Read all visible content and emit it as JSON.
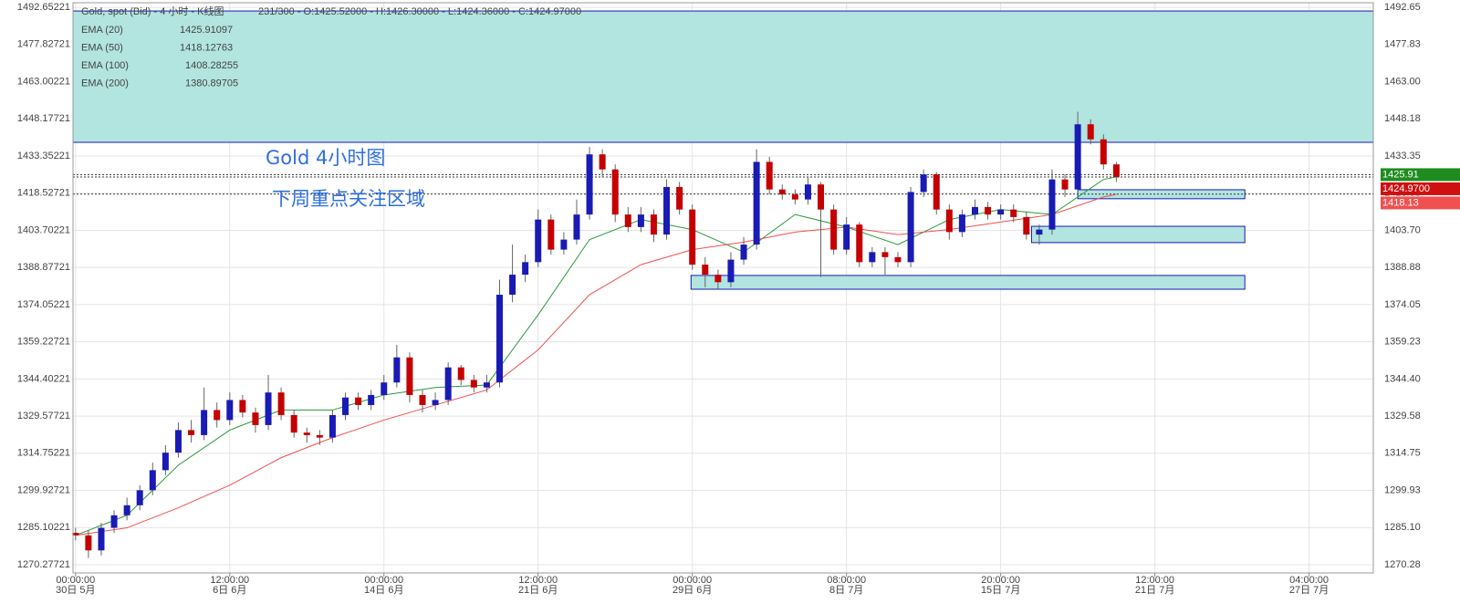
{
  "chart_data": {
    "type": "candlestick",
    "header": "Gold, spot (Bid) - 4 小时 - K线图",
    "ohlc_text": "231/300 - O:1425.52000 - H:1426.30000 - L:1424.36000 - C:1424.97000",
    "annotations": [
      "Gold 4小时图",
      "下周重点关注区域"
    ],
    "ylim": [
      1267.0,
      1494.5
    ],
    "xlim": [
      -0.2,
      101
    ],
    "yticks": [
      1492.65221,
      1477.82721,
      1463.00221,
      1448.17721,
      1433.35221,
      1418.52721,
      1403.70221,
      1388.87721,
      1374.05221,
      1359.22721,
      1344.40221,
      1329.57721,
      1314.75221,
      1299.92721,
      1285.10221,
      1270.27721
    ],
    "y2lim": [
      1267.0,
      1494.5
    ],
    "y2ticks": [
      {
        "value": 1492.65221,
        "label": "1492.65"
      },
      {
        "value": 1477.82721,
        "label": "1477.83"
      },
      {
        "value": 1463.00221,
        "label": "1463.00"
      },
      {
        "value": 1448.17721,
        "label": "1448.18"
      },
      {
        "value": 1433.35221,
        "label": "1433.35"
      },
      {
        "value": 1418.52721,
        "label": "1418.53"
      },
      {
        "value": 1403.70221,
        "label": "1403.70"
      },
      {
        "value": 1388.87721,
        "label": "1388.88"
      },
      {
        "value": 1374.05221,
        "label": "1374.05"
      },
      {
        "value": 1359.22721,
        "label": "1359.23"
      },
      {
        "value": 1344.40221,
        "label": "1344.40"
      },
      {
        "value": 1329.57721,
        "label": "1329.58"
      },
      {
        "value": 1314.75221,
        "label": "1314.75"
      },
      {
        "value": 1299.92721,
        "label": "1299.93"
      },
      {
        "value": 1285.10221,
        "label": "1285.10"
      },
      {
        "value": 1270.27721,
        "label": "1270.28"
      }
    ],
    "xticks": [
      {
        "value": 0,
        "label": "00:00:00",
        "date": "30日 5月"
      },
      {
        "value": 12,
        "label": "12:00:00",
        "date": "6日 6月"
      },
      {
        "value": 24,
        "label": "00:00:00",
        "date": "14日 6月"
      },
      {
        "value": 36,
        "label": "12:00:00",
        "date": "21日 6月"
      },
      {
        "value": 48,
        "label": "00:00:00",
        "date": "29日 6月"
      },
      {
        "value": 60,
        "label": "08:00:00",
        "date": "8日 7月"
      },
      {
        "value": 72,
        "label": "20:00:00",
        "date": "15日 7月"
      },
      {
        "value": 84,
        "label": "12:00:00",
        "date": "21日 7月"
      },
      {
        "value": 96,
        "label": "04:00:00",
        "date": "27日 7月"
      }
    ],
    "grid": true,
    "up_color": "#1a1ab4",
    "down_color": "#c40000",
    "open": [
      1283,
      1282,
      1276,
      1285,
      1290,
      1294,
      1300,
      1308,
      1315,
      1324,
      1322,
      1332,
      1328,
      1336,
      1331,
      1326,
      1339,
      1330,
      1323,
      1322,
      1321,
      1330,
      1337,
      1334,
      1338,
      1343,
      1353,
      1338,
      1334,
      1336,
      1349,
      1344,
      1341,
      1343,
      1378,
      1386,
      1391,
      1408,
      1396,
      1400,
      1410,
      1434,
      1428,
      1410,
      1405,
      1410,
      1402,
      1421,
      1412,
      1390,
      1386,
      1383,
      1392,
      1398,
      1431,
      1420,
      1418,
      1416,
      1422,
      1412,
      1396,
      1406,
      1391,
      1395,
      1393,
      1391,
      1419,
      1426,
      1412,
      1403,
      1410,
      1413,
      1410,
      1412,
      1409,
      1402,
      1404,
      1424,
      1420,
      1446,
      1440,
      1430
    ],
    "high": [
      1285,
      1284,
      1287,
      1292,
      1297,
      1302,
      1311,
      1318,
      1327,
      1328,
      1341,
      1335,
      1339,
      1338,
      1333,
      1346,
      1341,
      1332,
      1325,
      1324,
      1332,
      1339,
      1339,
      1340,
      1346,
      1358,
      1355,
      1340,
      1339,
      1351,
      1350,
      1346,
      1346,
      1384,
      1398,
      1394,
      1412,
      1410,
      1403,
      1416,
      1437,
      1436,
      1430,
      1413,
      1413,
      1412,
      1424,
      1423,
      1414,
      1393,
      1388,
      1395,
      1401,
      1436,
      1433,
      1422,
      1420,
      1425,
      1423,
      1414,
      1409,
      1407,
      1397,
      1397,
      1395,
      1421,
      1428,
      1427,
      1414,
      1412,
      1416,
      1415,
      1414,
      1414,
      1411,
      1406,
      1428,
      1426,
      1451,
      1448,
      1442,
      1431
    ],
    "low": [
      1280,
      1273,
      1274,
      1283,
      1288,
      1292,
      1298,
      1306,
      1313,
      1319,
      1320,
      1325,
      1326,
      1329,
      1323,
      1324,
      1328,
      1321,
      1319,
      1318,
      1319,
      1328,
      1332,
      1332,
      1336,
      1341,
      1335,
      1331,
      1332,
      1334,
      1342,
      1339,
      1339,
      1341,
      1375,
      1383,
      1389,
      1394,
      1394,
      1398,
      1408,
      1425,
      1407,
      1403,
      1403,
      1399,
      1400,
      1410,
      1388,
      1381,
      1380,
      1381,
      1390,
      1396,
      1418,
      1416,
      1414,
      1414,
      1385,
      1394,
      1394,
      1389,
      1389,
      1386,
      1389,
      1389,
      1417,
      1410,
      1400,
      1401,
      1408,
      1408,
      1408,
      1407,
      1400,
      1398,
      1402,
      1417,
      1418,
      1438,
      1428,
      1423
    ],
    "close": [
      1282,
      1276,
      1285,
      1290,
      1294,
      1300,
      1308,
      1315,
      1324,
      1322,
      1332,
      1328,
      1336,
      1331,
      1326,
      1339,
      1330,
      1323,
      1322,
      1321,
      1330,
      1337,
      1334,
      1338,
      1343,
      1353,
      1338,
      1334,
      1336,
      1349,
      1344,
      1341,
      1343,
      1378,
      1386,
      1391,
      1408,
      1396,
      1400,
      1410,
      1434,
      1428,
      1410,
      1405,
      1410,
      1402,
      1421,
      1412,
      1390,
      1386,
      1383,
      1392,
      1398,
      1431,
      1420,
      1418,
      1416,
      1422,
      1412,
      1396,
      1406,
      1391,
      1395,
      1393,
      1391,
      1419,
      1426,
      1412,
      1403,
      1410,
      1413,
      1410,
      1412,
      1409,
      1402,
      1404,
      1424,
      1420,
      1446,
      1440,
      1430,
      1425
    ],
    "series": [
      {
        "name": "EMA (20)",
        "current": 1425.91097,
        "color": "#2a9a3a",
        "x": [
          0,
          4,
          8,
          12,
          16,
          20,
          24,
          28,
          32,
          36,
          40,
          44,
          48,
          52,
          56,
          60,
          64,
          68,
          72,
          76,
          80,
          81
        ],
        "values": [
          1282,
          1290,
          1310,
          1324,
          1332,
          1332,
          1338,
          1341,
          1342,
          1370,
          1400,
          1408,
          1404,
          1395,
          1410,
          1405,
          1398,
          1408,
          1412,
          1410,
          1424,
          1425
        ]
      },
      {
        "name": "EMA (50)",
        "current": 1418.12763,
        "color": "#f05050",
        "x": [
          0,
          4,
          8,
          12,
          16,
          20,
          24,
          28,
          32,
          36,
          40,
          44,
          48,
          52,
          56,
          60,
          64,
          68,
          72,
          76,
          80,
          81
        ],
        "values": [
          1282,
          1285,
          1293,
          1302,
          1313,
          1321,
          1328,
          1334,
          1340,
          1356,
          1378,
          1390,
          1396,
          1399,
          1403,
          1405,
          1402,
          1404,
          1407,
          1410,
          1417,
          1418
        ]
      },
      {
        "name": "EMA (100)",
        "current": 1408.28255
      },
      {
        "name": "EMA (200)",
        "current": 1380.89705
      }
    ],
    "zones": [
      {
        "ylim": [
          1438.8,
          1491.2
        ]
      },
      {
        "x": [
          78,
          91
        ],
        "ylim": [
          1416.3,
          1419.9
        ]
      },
      {
        "x": [
          74.4,
          91
        ],
        "ylim": [
          1398.8,
          1405.3
        ]
      },
      {
        "x": [
          47.9,
          91
        ],
        "ylim": [
          1380.2,
          1385.7
        ]
      }
    ],
    "price_tags": [
      {
        "value": 1425.91,
        "color": "#1e8c1e"
      },
      {
        "value": 1424.97,
        "label": "1424.9700",
        "color": "#d01010"
      },
      {
        "value": 1418.13,
        "color": "#f05050"
      }
    ]
  }
}
